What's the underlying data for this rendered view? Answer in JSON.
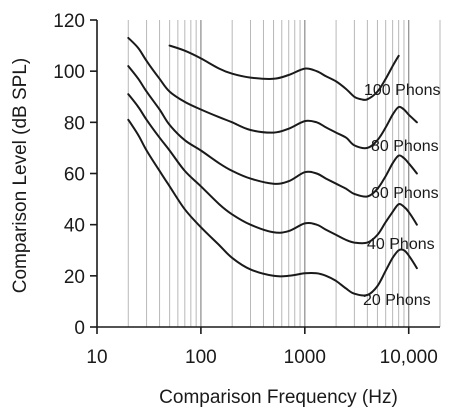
{
  "chart_data": {
    "type": "line",
    "xscale": "log",
    "xlim": [
      10,
      20000
    ],
    "ylim": [
      0,
      120
    ],
    "xlabel": "Comparison Frequency (Hz)",
    "ylabel": "Comparison Level (dB SPL)",
    "xticks": [
      {
        "value": 10,
        "label": "10"
      },
      {
        "value": 100,
        "label": "100"
      },
      {
        "value": 1000,
        "label": "1000"
      },
      {
        "value": 10000,
        "label": "10,000"
      }
    ],
    "yticks": [
      {
        "value": 0,
        "label": "0"
      },
      {
        "value": 20,
        "label": "20"
      },
      {
        "value": 40,
        "label": "40"
      },
      {
        "value": 60,
        "label": "60"
      },
      {
        "value": 80,
        "label": "80"
      },
      {
        "value": 100,
        "label": "100"
      },
      {
        "value": 120,
        "label": "120"
      }
    ],
    "grid": {
      "vertical_log_minor": true,
      "horizontal": false
    },
    "line_color": "#1a1a1a",
    "series": [
      {
        "name": "100 Phons",
        "points": [
          [
            50,
            110
          ],
          [
            70,
            108
          ],
          [
            100,
            105
          ],
          [
            150,
            101
          ],
          [
            200,
            99
          ],
          [
            300,
            97.5
          ],
          [
            500,
            97
          ],
          [
            700,
            98.5
          ],
          [
            1000,
            101
          ],
          [
            1300,
            100
          ],
          [
            1600,
            98
          ],
          [
            2000,
            96
          ],
          [
            2500,
            93
          ],
          [
            3000,
            90
          ],
          [
            3500,
            89
          ],
          [
            4000,
            89
          ],
          [
            5000,
            92
          ],
          [
            6000,
            97
          ],
          [
            7000,
            102
          ],
          [
            8000,
            106
          ]
        ]
      },
      {
        "name": "80 Phons",
        "points": [
          [
            20,
            113
          ],
          [
            25,
            109
          ],
          [
            30,
            104
          ],
          [
            40,
            97
          ],
          [
            50,
            92
          ],
          [
            70,
            88
          ],
          [
            100,
            85
          ],
          [
            150,
            82
          ],
          [
            200,
            80
          ],
          [
            300,
            77
          ],
          [
            500,
            76
          ],
          [
            700,
            77.5
          ],
          [
            1000,
            80.5
          ],
          [
            1300,
            80
          ],
          [
            1600,
            78
          ],
          [
            2000,
            76
          ],
          [
            2500,
            74
          ],
          [
            3000,
            71
          ],
          [
            4000,
            70
          ],
          [
            5000,
            73
          ],
          [
            6000,
            78
          ],
          [
            7000,
            83
          ],
          [
            8000,
            86
          ],
          [
            9000,
            85
          ],
          [
            10000,
            83
          ],
          [
            12000,
            80
          ]
        ]
      },
      {
        "name": "60 Phons",
        "points": [
          [
            20,
            102
          ],
          [
            25,
            97
          ],
          [
            30,
            92
          ],
          [
            40,
            85
          ],
          [
            50,
            79
          ],
          [
            70,
            73
          ],
          [
            100,
            69
          ],
          [
            150,
            64
          ],
          [
            200,
            61
          ],
          [
            300,
            58
          ],
          [
            500,
            56
          ],
          [
            700,
            57
          ],
          [
            1000,
            60.5
          ],
          [
            1300,
            60
          ],
          [
            1600,
            58
          ],
          [
            2000,
            56
          ],
          [
            2500,
            54
          ],
          [
            3000,
            52
          ],
          [
            4000,
            51
          ],
          [
            5000,
            54
          ],
          [
            6000,
            59
          ],
          [
            7000,
            64
          ],
          [
            8000,
            67
          ],
          [
            9000,
            66
          ],
          [
            10000,
            64
          ],
          [
            12000,
            60
          ]
        ]
      },
      {
        "name": "40 Phons",
        "points": [
          [
            20,
            91
          ],
          [
            25,
            86
          ],
          [
            30,
            81
          ],
          [
            40,
            74
          ],
          [
            50,
            69
          ],
          [
            70,
            61
          ],
          [
            100,
            55
          ],
          [
            150,
            48
          ],
          [
            200,
            44
          ],
          [
            300,
            40
          ],
          [
            500,
            37
          ],
          [
            700,
            37.5
          ],
          [
            1000,
            40.5
          ],
          [
            1300,
            40
          ],
          [
            1600,
            38
          ],
          [
            2000,
            36
          ],
          [
            2500,
            34
          ],
          [
            3000,
            33
          ],
          [
            4000,
            33
          ],
          [
            5000,
            36
          ],
          [
            6000,
            41
          ],
          [
            7000,
            45
          ],
          [
            8000,
            48
          ],
          [
            9000,
            47
          ],
          [
            10000,
            45
          ],
          [
            12000,
            40
          ]
        ]
      },
      {
        "name": "20 Phons",
        "points": [
          [
            20,
            81
          ],
          [
            25,
            75
          ],
          [
            30,
            69
          ],
          [
            40,
            61
          ],
          [
            50,
            55
          ],
          [
            70,
            46
          ],
          [
            100,
            39
          ],
          [
            150,
            32
          ],
          [
            200,
            27
          ],
          [
            300,
            22.5
          ],
          [
            500,
            20
          ],
          [
            700,
            20
          ],
          [
            1000,
            21
          ],
          [
            1300,
            21
          ],
          [
            1600,
            20
          ],
          [
            2000,
            18
          ],
          [
            2500,
            15
          ],
          [
            3000,
            13
          ],
          [
            4000,
            12.5
          ],
          [
            5000,
            16
          ],
          [
            6000,
            22
          ],
          [
            7000,
            27
          ],
          [
            8000,
            30
          ],
          [
            9000,
            30
          ],
          [
            10000,
            28
          ],
          [
            12000,
            23
          ]
        ]
      }
    ]
  }
}
